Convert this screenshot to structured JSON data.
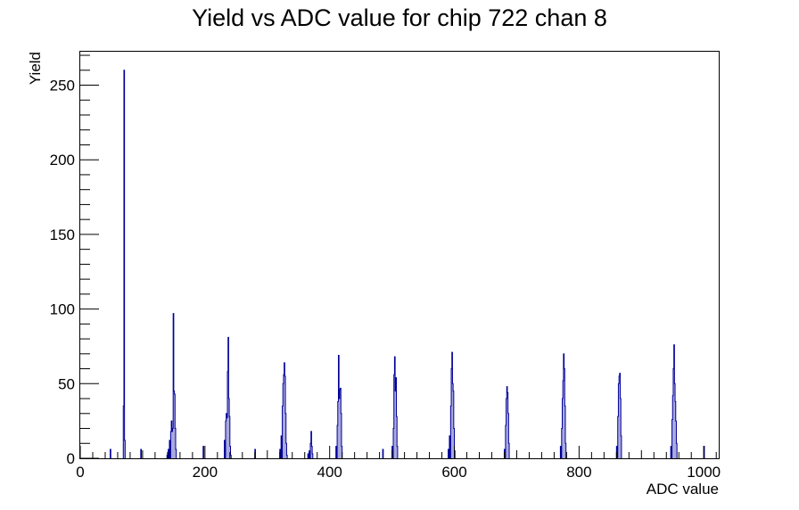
{
  "chart_data": {
    "type": "bar",
    "title": "Yield vs ADC value for chip 722 chan 8",
    "xlabel": "ADC value",
    "ylabel": "Yield",
    "xlim": [
      0,
      1024
    ],
    "ylim": [
      0,
      273
    ],
    "x_ticks": [
      0,
      200,
      400,
      600,
      800,
      1000
    ],
    "x_tick_labels": [
      "0",
      "200",
      "400",
      "600",
      "800",
      "1000"
    ],
    "y_ticks": [
      0,
      50,
      100,
      150,
      200,
      250
    ],
    "y_tick_labels": [
      "0",
      "50",
      "100",
      "150",
      "200",
      "250"
    ],
    "grid": false,
    "legend": "none",
    "bin_width": 1,
    "line_color": "#000099",
    "bins": [
      [
        48,
        6
      ],
      [
        69,
        35
      ],
      [
        70,
        260
      ],
      [
        71,
        12
      ],
      [
        97,
        6
      ],
      [
        139,
        2
      ],
      [
        141,
        6
      ],
      [
        143,
        12
      ],
      [
        145,
        18
      ],
      [
        146,
        25
      ],
      [
        147,
        18
      ],
      [
        148,
        20
      ],
      [
        149,
        97
      ],
      [
        150,
        45
      ],
      [
        151,
        43
      ],
      [
        152,
        20
      ],
      [
        153,
        6
      ],
      [
        197,
        8
      ],
      [
        231,
        12
      ],
      [
        233,
        25
      ],
      [
        234,
        30
      ],
      [
        235,
        27
      ],
      [
        236,
        58
      ],
      [
        237,
        81
      ],
      [
        238,
        40
      ],
      [
        239,
        28
      ],
      [
        240,
        8
      ],
      [
        241,
        2
      ],
      [
        280,
        6
      ],
      [
        320,
        6
      ],
      [
        322,
        15
      ],
      [
        324,
        35
      ],
      [
        325,
        50
      ],
      [
        326,
        56
      ],
      [
        327,
        64
      ],
      [
        328,
        55
      ],
      [
        329,
        30
      ],
      [
        330,
        10
      ],
      [
        331,
        2
      ],
      [
        365,
        3
      ],
      [
        367,
        5
      ],
      [
        369,
        10
      ],
      [
        370,
        18
      ],
      [
        371,
        8
      ],
      [
        372,
        3
      ],
      [
        410,
        8
      ],
      [
        412,
        22
      ],
      [
        413,
        38
      ],
      [
        414,
        69
      ],
      [
        415,
        40
      ],
      [
        416,
        46
      ],
      [
        417,
        47
      ],
      [
        418,
        30
      ],
      [
        419,
        8
      ],
      [
        485,
        6
      ],
      [
        500,
        8
      ],
      [
        502,
        20
      ],
      [
        503,
        56
      ],
      [
        504,
        68
      ],
      [
        505,
        45
      ],
      [
        506,
        54
      ],
      [
        507,
        28
      ],
      [
        508,
        8
      ],
      [
        590,
        6
      ],
      [
        592,
        15
      ],
      [
        594,
        35
      ],
      [
        595,
        60
      ],
      [
        596,
        71
      ],
      [
        597,
        50
      ],
      [
        598,
        45
      ],
      [
        599,
        20
      ],
      [
        600,
        5
      ],
      [
        680,
        6
      ],
      [
        682,
        22
      ],
      [
        683,
        40
      ],
      [
        684,
        48
      ],
      [
        685,
        44
      ],
      [
        686,
        30
      ],
      [
        687,
        10
      ],
      [
        770,
        8
      ],
      [
        772,
        20
      ],
      [
        773,
        40
      ],
      [
        774,
        52
      ],
      [
        775,
        70
      ],
      [
        776,
        60
      ],
      [
        777,
        35
      ],
      [
        778,
        10
      ],
      [
        860,
        8
      ],
      [
        862,
        28
      ],
      [
        863,
        50
      ],
      [
        864,
        55
      ],
      [
        865,
        57
      ],
      [
        866,
        40
      ],
      [
        867,
        15
      ],
      [
        947,
        8
      ],
      [
        949,
        26
      ],
      [
        950,
        42
      ],
      [
        951,
        60
      ],
      [
        952,
        76
      ],
      [
        953,
        50
      ],
      [
        954,
        38
      ],
      [
        955,
        25
      ],
      [
        956,
        10
      ],
      [
        1000,
        8
      ]
    ]
  }
}
